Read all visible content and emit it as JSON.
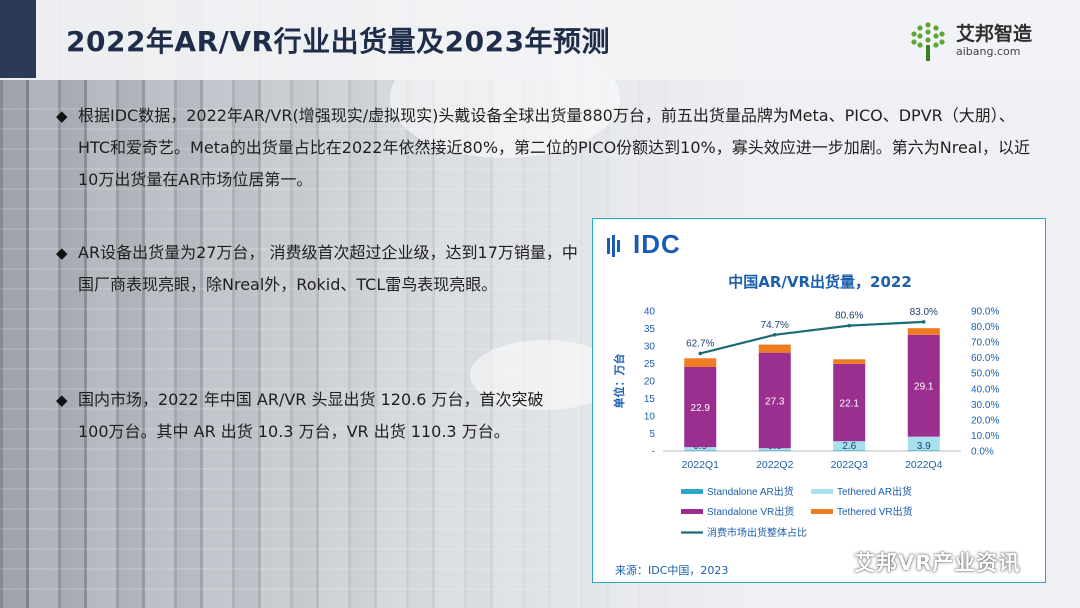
{
  "page": {
    "title": "2022年AR/VR行业出货量及2023年预测",
    "logo": {
      "cn": "艾邦智造",
      "en": "aibang.com"
    },
    "watermark": "艾邦VR产业资讯"
  },
  "bullets": [
    "根据IDC数据，2022年AR/VR(增强现实/虚拟现实)头戴设备全球出货量880万台，前五出货量品牌为Meta、PICO、DPVR（大朋）、HTC和爱奇艺。Meta的出货量占比在2022年依然接近80%，第二位的PICO份额达到10%，寡头效应进一步加剧。第六为Nreal，以近10万出货量在AR市场位居第一。",
    "AR设备出货量为27万台， 消费级首次超过企业级，达到17万销量，中国厂商表现亮眼，除Nreal外，Rokid、TCL雷鸟表现亮眼。",
    "国内市场，2022 年中国 AR/VR 头显出货 120.6 万台，首次突破100万台。其中 AR 出货 10.3 万台，VR 出货 110.3 万台。"
  ],
  "bullet_mark": "◆",
  "chart_brand": "IDC",
  "chart_source": "来源：IDC中国，2023",
  "chart_data": {
    "type": "bar",
    "title": "中国AR/VR出货量，2022",
    "ylabel": "单位：万台",
    "ylim": [
      0,
      40
    ],
    "yticks": [
      "-",
      "5",
      "10",
      "15",
      "20",
      "25",
      "30",
      "35",
      "40"
    ],
    "y2lim": [
      0,
      90
    ],
    "y2ticks": [
      "0.0%",
      "10.0%",
      "20.0%",
      "30.0%",
      "40.0%",
      "50.0%",
      "60.0%",
      "70.0%",
      "80.0%",
      "90.0%"
    ],
    "categories": [
      "2022Q1",
      "2022Q2",
      "2022Q3",
      "2022Q4"
    ],
    "stacked": true,
    "series": [
      {
        "name": "Standalone AR出货",
        "color": "#29a6c9",
        "values": [
          0.2,
          0.2,
          0.2,
          0.2
        ],
        "labels": [
          "",
          "",
          "",
          ""
        ]
      },
      {
        "name": "Tethered AR出货",
        "color": "#a9e0ee",
        "values": [
          0.9,
          0.6,
          2.6,
          3.9
        ],
        "labels": [
          "0.9",
          "0.6",
          "2.6",
          "3.9"
        ]
      },
      {
        "name": "Standalone VR出货",
        "color": "#9b2f8f",
        "values": [
          22.9,
          27.3,
          22.1,
          29.1
        ],
        "labels": [
          "22.9",
          "27.3",
          "22.1",
          "29.1"
        ]
      },
      {
        "name": "Tethered VR出货",
        "color": "#f07c21",
        "values": [
          2.5,
          2.3,
          1.3,
          1.9
        ],
        "labels": [
          "",
          "",
          "",
          ""
        ]
      }
    ],
    "line": {
      "name": "消费市场出货整体占比",
      "color": "#1d6b78",
      "values": [
        62.7,
        74.7,
        80.6,
        83.0
      ],
      "labels": [
        "62.7%",
        "74.7%",
        "80.6%",
        "83.0%"
      ]
    },
    "legend_position": "bottom"
  }
}
